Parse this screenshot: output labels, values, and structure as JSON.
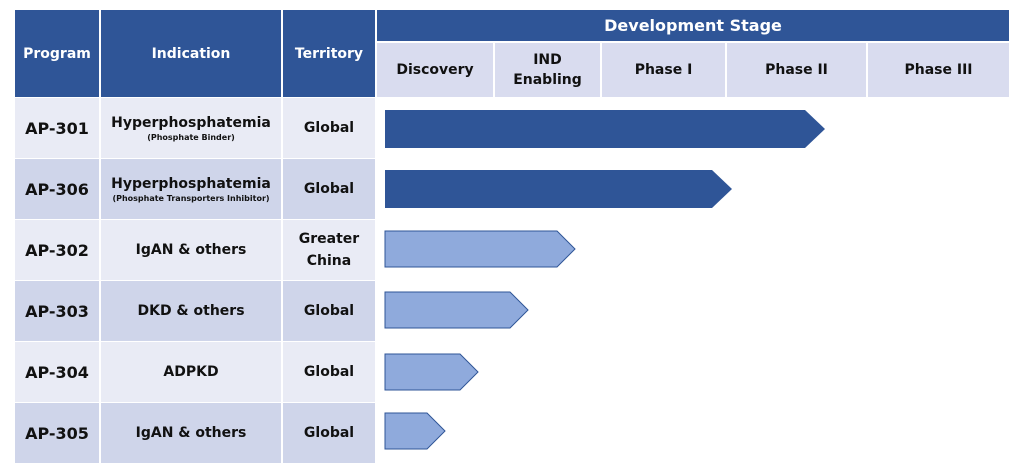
{
  "header": {
    "columns": [
      "Program",
      "Indication",
      "Territory"
    ],
    "group": "Development Stage",
    "stages": [
      "Discovery",
      "IND Enabling",
      "Phase I",
      "Phase II",
      "Phase III"
    ]
  },
  "rows": [
    {
      "program": "AP-301",
      "indication": "Hyperphosphatemia",
      "note": "(Phosphate Binder)",
      "territory": "Global"
    },
    {
      "program": "AP-306",
      "indication": "Hyperphosphatemia",
      "note": "(Phosphate Transporters Inhibitor)",
      "territory": "Global"
    },
    {
      "program": "AP-302",
      "indication": "IgAN & others",
      "territory": "Greater China"
    },
    {
      "program": "AP-303",
      "indication": "DKD & others",
      "territory": "Global"
    },
    {
      "program": "AP-304",
      "indication": "ADPKD",
      "territory": "Global"
    },
    {
      "program": "AP-305",
      "indication": "IgAN & others",
      "territory": "Global"
    }
  ]
}
